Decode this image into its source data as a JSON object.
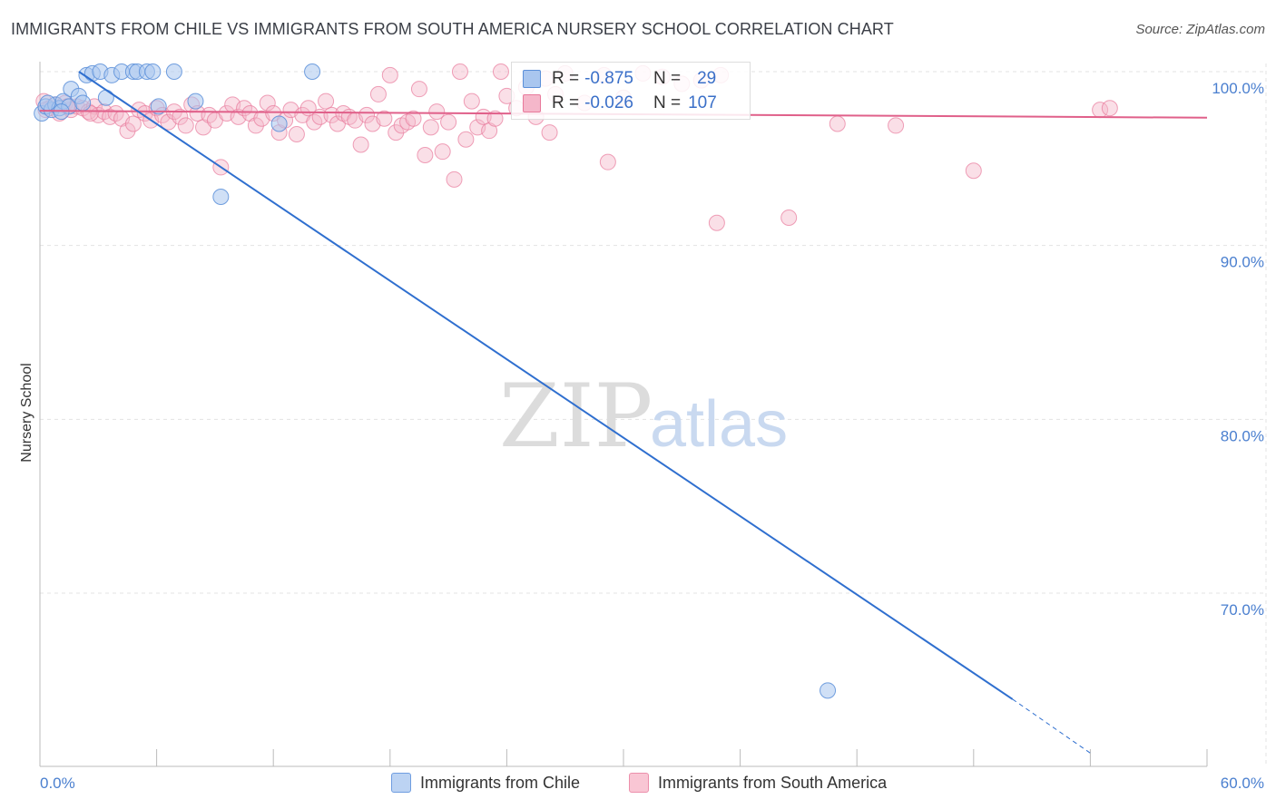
{
  "title": "IMMIGRANTS FROM CHILE VS IMMIGRANTS FROM SOUTH AMERICA NURSERY SCHOOL CORRELATION CHART",
  "source": "Source: ZipAtlas.com",
  "watermark": {
    "zip": "ZIP",
    "atlas": "atlas"
  },
  "colors": {
    "blue": "#5b8fd9",
    "blue_fill": "#a9c6ef",
    "pink": "#e8799b",
    "pink_fill": "#f5b7ca",
    "blue_line": "#2f6fcf",
    "pink_line": "#e0608a",
    "tick_text": "#4a7fcf"
  },
  "legend_stats": [
    {
      "r_label": "R =",
      "r_value": "-0.875",
      "n_label": "N =",
      "n_value": "29",
      "color": "blue"
    },
    {
      "r_label": "R =",
      "r_value": "-0.026",
      "n_label": "N =",
      "n_value": "107",
      "color": "pink"
    }
  ],
  "legend_bottom": [
    {
      "label": "Immigrants from Chile",
      "color": "blue"
    },
    {
      "label": "Immigrants from South America",
      "color": "pink"
    }
  ],
  "chart_data": {
    "type": "scatter",
    "title": "IMMIGRANTS FROM CHILE VS IMMIGRANTS FROM SOUTH AMERICA NURSERY SCHOOL CORRELATION CHART",
    "xlabel": "",
    "ylabel": "Nursery School",
    "xlim": [
      0,
      60
    ],
    "ylim": [
      62,
      100.8
    ],
    "x_tick_labels": [
      "0.0%",
      "60.0%"
    ],
    "y_ticks": [
      100,
      90,
      80,
      70
    ],
    "y_tick_labels": [
      "100.0%",
      "90.0%",
      "80.0%",
      "70.0%"
    ],
    "grid": true,
    "series": [
      {
        "name": "Immigrants from Chile",
        "color": "blue",
        "points": [
          [
            0.1,
            97.6
          ],
          [
            0.3,
            98.0
          ],
          [
            0.6,
            97.8
          ],
          [
            0.8,
            98.1
          ],
          [
            1.0,
            97.9
          ],
          [
            1.2,
            98.3
          ],
          [
            1.5,
            98.0
          ],
          [
            1.6,
            99.0
          ],
          [
            2.0,
            98.6
          ],
          [
            2.2,
            98.2
          ],
          [
            2.4,
            99.8
          ],
          [
            2.7,
            99.9
          ],
          [
            3.1,
            100.0
          ],
          [
            3.4,
            98.5
          ],
          [
            3.7,
            99.8
          ],
          [
            4.2,
            100.0
          ],
          [
            4.8,
            100.0
          ],
          [
            5.0,
            100.0
          ],
          [
            5.5,
            100.0
          ],
          [
            5.8,
            100.0
          ],
          [
            6.1,
            98.0
          ],
          [
            6.9,
            100.0
          ],
          [
            8.0,
            98.3
          ],
          [
            9.3,
            92.8
          ],
          [
            12.3,
            97.0
          ],
          [
            14.0,
            100.0
          ],
          [
            40.5,
            64.4
          ],
          [
            0.4,
            98.2
          ],
          [
            1.1,
            97.7
          ]
        ],
        "trendline": {
          "x": [
            2.0,
            50.0
          ],
          "y": [
            100.0,
            63.9
          ]
        },
        "trendline_dashed": {
          "x": [
            50.0,
            54.0
          ],
          "y": [
            63.9,
            60.8
          ]
        }
      },
      {
        "name": "Immigrants from South America",
        "color": "pink",
        "points": [
          [
            0.2,
            98.3
          ],
          [
            0.5,
            97.9
          ],
          [
            0.8,
            98.1
          ],
          [
            1.0,
            97.6
          ],
          [
            1.3,
            98.2
          ],
          [
            1.6,
            97.8
          ],
          [
            1.9,
            98.0
          ],
          [
            2.2,
            97.9
          ],
          [
            2.5,
            97.7
          ],
          [
            2.8,
            98.0
          ],
          [
            3.0,
            97.5
          ],
          [
            3.3,
            97.7
          ],
          [
            3.6,
            97.4
          ],
          [
            3.9,
            97.6
          ],
          [
            4.2,
            97.3
          ],
          [
            4.5,
            96.6
          ],
          [
            4.8,
            97.0
          ],
          [
            5.1,
            97.8
          ],
          [
            5.4,
            97.6
          ],
          [
            5.7,
            97.2
          ],
          [
            6.0,
            97.9
          ],
          [
            6.3,
            97.5
          ],
          [
            6.6,
            97.1
          ],
          [
            6.9,
            97.7
          ],
          [
            7.2,
            97.4
          ],
          [
            7.5,
            96.9
          ],
          [
            7.8,
            98.1
          ],
          [
            8.1,
            97.6
          ],
          [
            8.4,
            96.8
          ],
          [
            8.7,
            97.5
          ],
          [
            9.0,
            97.2
          ],
          [
            9.3,
            94.5
          ],
          [
            9.6,
            97.6
          ],
          [
            9.9,
            98.1
          ],
          [
            10.2,
            97.4
          ],
          [
            10.5,
            97.9
          ],
          [
            10.8,
            97.6
          ],
          [
            11.1,
            96.9
          ],
          [
            11.4,
            97.3
          ],
          [
            11.7,
            98.2
          ],
          [
            12.0,
            97.6
          ],
          [
            12.3,
            96.5
          ],
          [
            12.6,
            97.2
          ],
          [
            12.9,
            97.8
          ],
          [
            13.2,
            96.4
          ],
          [
            13.5,
            97.5
          ],
          [
            13.8,
            97.9
          ],
          [
            14.1,
            97.1
          ],
          [
            14.4,
            97.4
          ],
          [
            14.7,
            98.3
          ],
          [
            15.0,
            97.5
          ],
          [
            15.3,
            97.0
          ],
          [
            15.6,
            97.6
          ],
          [
            15.9,
            97.4
          ],
          [
            16.2,
            97.2
          ],
          [
            16.5,
            95.8
          ],
          [
            16.8,
            97.5
          ],
          [
            17.1,
            97.0
          ],
          [
            17.4,
            98.7
          ],
          [
            17.7,
            97.3
          ],
          [
            18.0,
            99.8
          ],
          [
            18.3,
            96.5
          ],
          [
            18.6,
            96.9
          ],
          [
            18.9,
            97.1
          ],
          [
            19.2,
            97.3
          ],
          [
            19.5,
            99.0
          ],
          [
            19.8,
            95.2
          ],
          [
            20.1,
            96.8
          ],
          [
            20.4,
            97.7
          ],
          [
            20.7,
            95.4
          ],
          [
            21.0,
            97.1
          ],
          [
            21.3,
            93.8
          ],
          [
            21.6,
            100.0
          ],
          [
            21.9,
            96.1
          ],
          [
            22.2,
            98.3
          ],
          [
            22.5,
            96.8
          ],
          [
            22.8,
            97.4
          ],
          [
            23.1,
            96.6
          ],
          [
            23.4,
            97.3
          ],
          [
            23.7,
            100.0
          ],
          [
            24.0,
            98.6
          ],
          [
            24.5,
            97.9
          ],
          [
            25.0,
            99.1
          ],
          [
            25.5,
            97.4
          ],
          [
            26.0,
            99.6
          ],
          [
            26.5,
            98.7
          ],
          [
            27.0,
            99.9
          ],
          [
            28.0,
            98.2
          ],
          [
            29.0,
            99.8
          ],
          [
            30.0,
            98.5
          ],
          [
            31.0,
            99.9
          ],
          [
            32.0,
            99.7
          ],
          [
            33.0,
            99.3
          ],
          [
            34.0,
            99.5
          ],
          [
            35.0,
            99.8
          ],
          [
            29.2,
            94.8
          ],
          [
            34.8,
            91.3
          ],
          [
            38.5,
            91.6
          ],
          [
            41.0,
            97.0
          ],
          [
            44.0,
            96.9
          ],
          [
            48.0,
            94.3
          ],
          [
            54.5,
            97.8
          ],
          [
            55.0,
            97.9
          ],
          [
            0.3,
            97.8
          ],
          [
            1.4,
            98.0
          ],
          [
            2.6,
            97.6
          ],
          [
            26.2,
            96.5
          ]
        ],
        "trendline": {
          "x": [
            0.0,
            60.0
          ],
          "y": [
            97.75,
            97.35
          ]
        }
      }
    ]
  }
}
